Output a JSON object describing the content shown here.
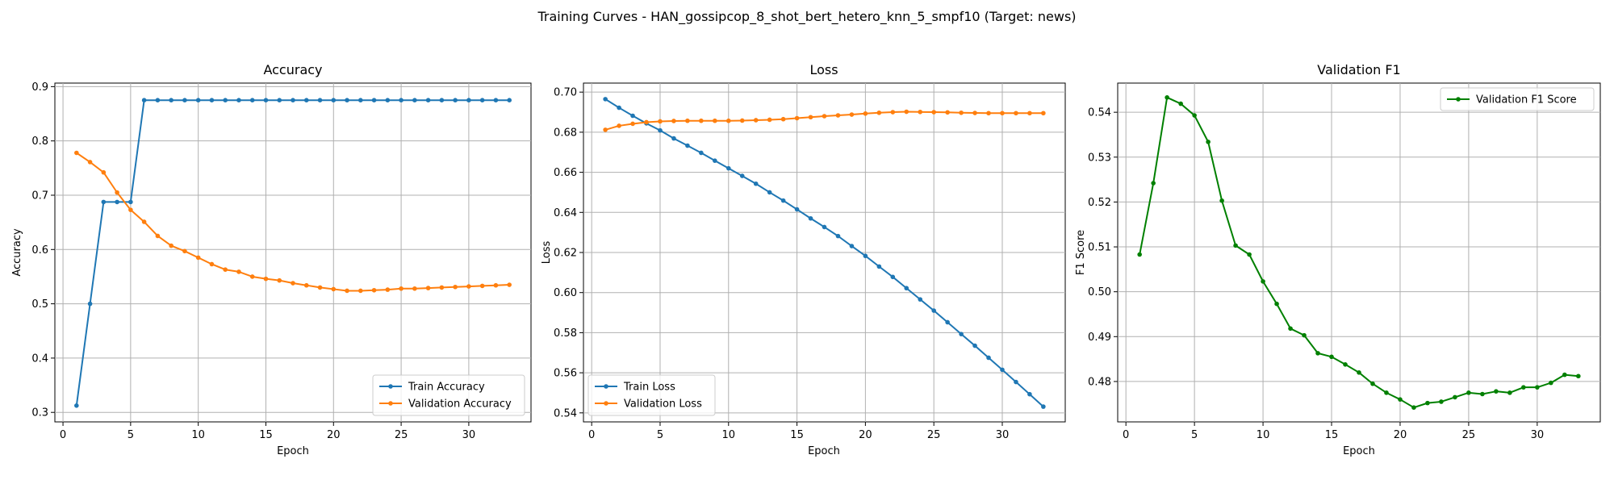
{
  "figure": {
    "suptitle": "Training Curves - HAN_gossipcop_8_shot_bert_hetero_knn_5_smpf10 (Target: news)"
  },
  "chart_data": [
    {
      "type": "line",
      "title": "Accuracy",
      "xlabel": "Epoch",
      "ylabel": "Accuracy",
      "xlim": [
        -0.6,
        34.6
      ],
      "ylim": [
        0.2825,
        0.9065
      ],
      "xticks": [
        0,
        5,
        10,
        15,
        20,
        25,
        30
      ],
      "yticks": [
        0.3,
        0.4,
        0.5,
        0.6,
        0.7,
        0.8,
        0.9
      ],
      "ytick_labels": [
        "0.3",
        "0.4",
        "0.5",
        "0.6",
        "0.7",
        "0.8",
        "0.9"
      ],
      "grid": true,
      "legend": "lower-right",
      "x": [
        1,
        2,
        3,
        4,
        5,
        6,
        7,
        8,
        9,
        10,
        11,
        12,
        13,
        14,
        15,
        16,
        17,
        18,
        19,
        20,
        21,
        22,
        23,
        24,
        25,
        26,
        27,
        28,
        29,
        30,
        31,
        32,
        33
      ],
      "series": [
        {
          "name": "Train Accuracy",
          "color": "#1f77b4",
          "values": [
            0.3125,
            0.5,
            0.6875,
            0.6875,
            0.6875,
            0.875,
            0.875,
            0.875,
            0.875,
            0.875,
            0.875,
            0.875,
            0.875,
            0.875,
            0.875,
            0.875,
            0.875,
            0.875,
            0.875,
            0.875,
            0.875,
            0.875,
            0.875,
            0.875,
            0.875,
            0.875,
            0.875,
            0.875,
            0.875,
            0.875,
            0.875,
            0.875,
            0.875
          ]
        },
        {
          "name": "Validation Accuracy",
          "color": "#ff7f0e",
          "values": [
            0.778,
            0.761,
            0.742,
            0.705,
            0.673,
            0.651,
            0.625,
            0.607,
            0.597,
            0.585,
            0.573,
            0.563,
            0.559,
            0.55,
            0.546,
            0.543,
            0.538,
            0.534,
            0.53,
            0.527,
            0.524,
            0.524,
            0.525,
            0.526,
            0.528,
            0.528,
            0.529,
            0.53,
            0.531,
            0.532,
            0.533,
            0.534,
            0.535
          ]
        }
      ]
    },
    {
      "type": "line",
      "title": "Loss",
      "xlabel": "Epoch",
      "ylabel": "Loss",
      "xlim": [
        -0.6,
        34.6
      ],
      "ylim": [
        0.5355,
        0.7045
      ],
      "xticks": [
        0,
        5,
        10,
        15,
        20,
        25,
        30
      ],
      "yticks": [
        0.54,
        0.56,
        0.58,
        0.6,
        0.62,
        0.64,
        0.66,
        0.68,
        0.7
      ],
      "ytick_labels": [
        "0.54",
        "0.56",
        "0.58",
        "0.60",
        "0.62",
        "0.64",
        "0.66",
        "0.68",
        "0.70"
      ],
      "grid": true,
      "legend": "lower-left",
      "x": [
        1,
        2,
        3,
        4,
        5,
        6,
        7,
        8,
        9,
        10,
        11,
        12,
        13,
        14,
        15,
        16,
        17,
        18,
        19,
        20,
        21,
        22,
        23,
        24,
        25,
        26,
        27,
        28,
        29,
        30,
        31,
        32,
        33
      ],
      "series": [
        {
          "name": "Train Loss",
          "color": "#1f77b4",
          "values": [
            0.6965,
            0.6922,
            0.6882,
            0.6844,
            0.6809,
            0.6769,
            0.6733,
            0.6697,
            0.6658,
            0.662,
            0.6582,
            0.6543,
            0.65,
            0.6459,
            0.6415,
            0.637,
            0.6327,
            0.6282,
            0.6232,
            0.6183,
            0.613,
            0.6078,
            0.6022,
            0.5966,
            0.591,
            0.5852,
            0.5793,
            0.5735,
            0.5675,
            0.5615,
            0.5554,
            0.5493,
            0.5431
          ]
        },
        {
          "name": "Validation Loss",
          "color": "#ff7f0e",
          "values": [
            0.6812,
            0.6832,
            0.6842,
            0.685,
            0.6854,
            0.6856,
            0.6857,
            0.6857,
            0.6857,
            0.6857,
            0.6858,
            0.686,
            0.6862,
            0.6865,
            0.687,
            0.6875,
            0.688,
            0.6884,
            0.6888,
            0.6893,
            0.6897,
            0.69,
            0.6902,
            0.6901,
            0.69,
            0.6899,
            0.6897,
            0.6896,
            0.6895,
            0.6895,
            0.6895,
            0.6895,
            0.6895
          ]
        }
      ]
    },
    {
      "type": "line",
      "title": "Validation F1",
      "xlabel": "Epoch",
      "ylabel": "F1 Score",
      "xlim": [
        -0.6,
        34.6
      ],
      "ylim": [
        0.471,
        0.5465
      ],
      "xticks": [
        0,
        5,
        10,
        15,
        20,
        25,
        30
      ],
      "yticks": [
        0.48,
        0.49,
        0.5,
        0.51,
        0.52,
        0.53,
        0.54
      ],
      "ytick_labels": [
        "0.48",
        "0.49",
        "0.50",
        "0.51",
        "0.52",
        "0.53",
        "0.54"
      ],
      "grid": true,
      "legend": "upper-right",
      "x": [
        1,
        2,
        3,
        4,
        5,
        6,
        7,
        8,
        9,
        10,
        11,
        12,
        13,
        14,
        15,
        16,
        17,
        18,
        19,
        20,
        21,
        22,
        23,
        24,
        25,
        26,
        27,
        28,
        29,
        30,
        31,
        32,
        33
      ],
      "series": [
        {
          "name": "Validation F1 Score",
          "color": "#008000",
          "values": [
            0.5083,
            0.5242,
            0.5433,
            0.5419,
            0.5393,
            0.5334,
            0.5203,
            0.5103,
            0.5083,
            0.5023,
            0.4973,
            0.4918,
            0.4903,
            0.4863,
            0.4855,
            0.4838,
            0.482,
            0.4795,
            0.4775,
            0.476,
            0.4742,
            0.4752,
            0.4755,
            0.4765,
            0.4775,
            0.4772,
            0.4778,
            0.4775,
            0.4787,
            0.4787,
            0.4797,
            0.4815,
            0.4812
          ]
        }
      ]
    }
  ]
}
